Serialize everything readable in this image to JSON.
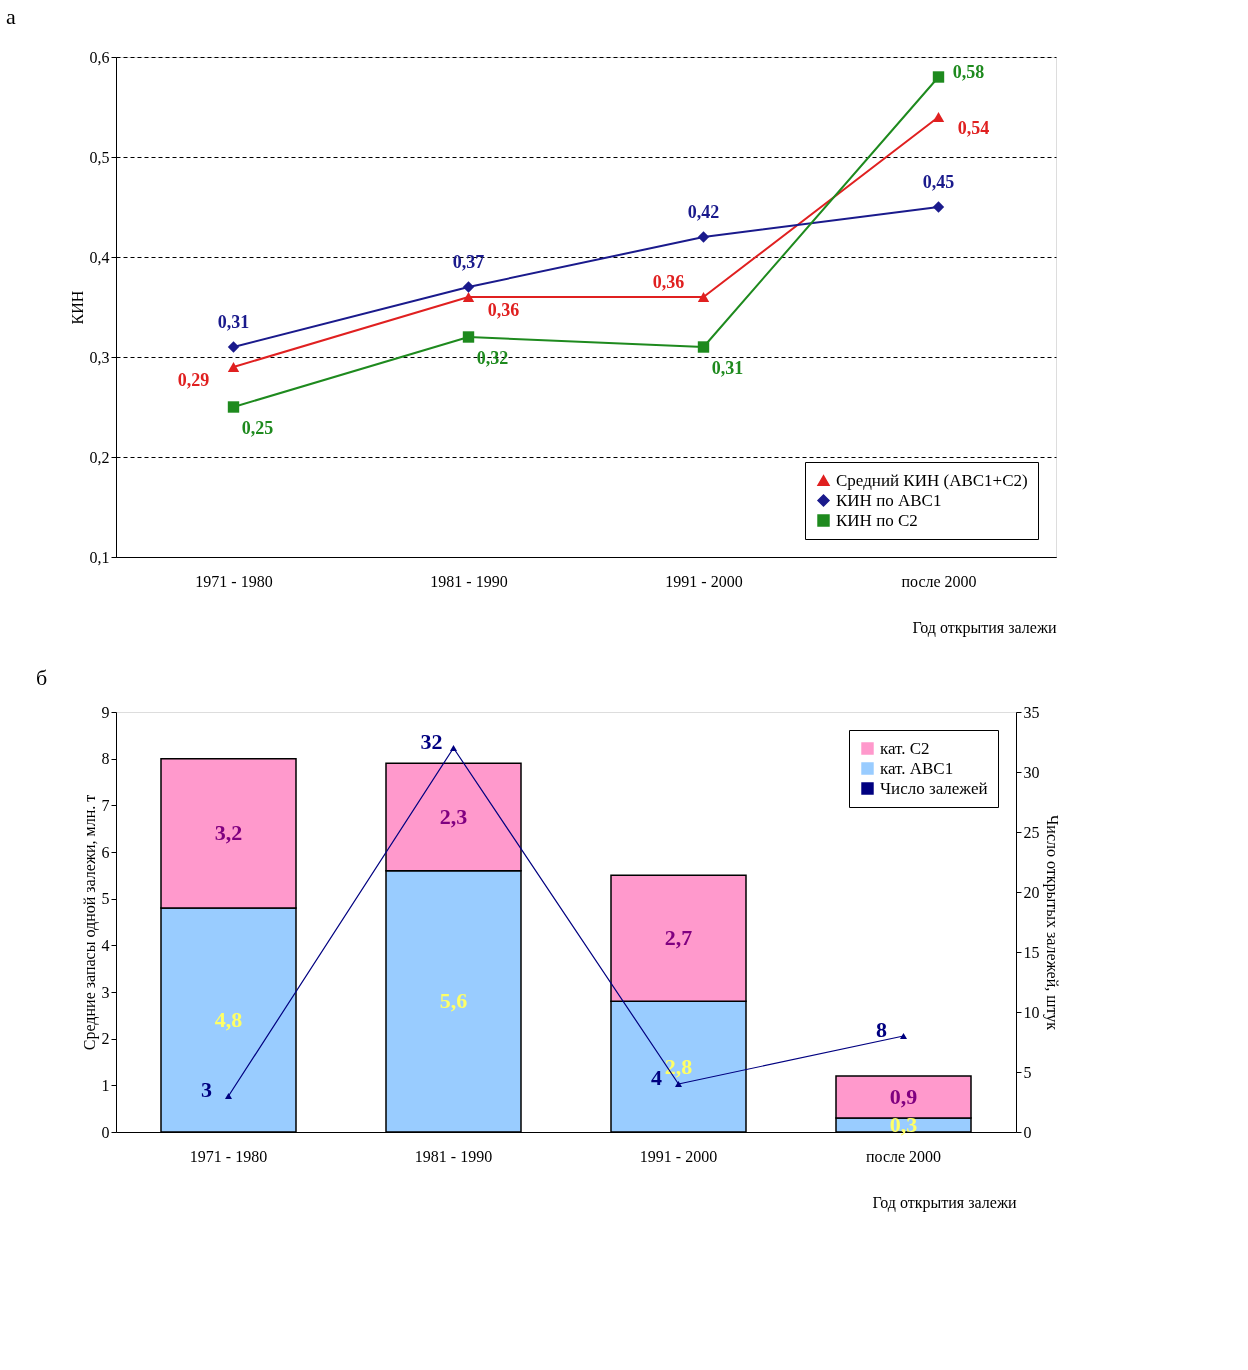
{
  "chart_data": [
    {
      "type": "line",
      "title": "а",
      "xlabel": "Год открытия залежи",
      "ylabel": "КИН",
      "categories": [
        "1971 - 1980",
        "1981 - 1990",
        "1991 - 2000",
        "после 2000"
      ],
      "series": [
        {
          "name": "Средний КИН (АВС1+С2)",
          "color": "#e02020",
          "marker": "triangle",
          "values": [
            0.29,
            0.36,
            0.36,
            0.54
          ],
          "value_labels": [
            "0,29",
            "0,36",
            "0,36",
            "0,54"
          ]
        },
        {
          "name": "КИН по АВС1",
          "color": "#1a1a8c",
          "marker": "diamond",
          "values": [
            0.31,
            0.37,
            0.42,
            0.45
          ],
          "value_labels": [
            "0,31",
            "0,37",
            "0,42",
            "0,45"
          ]
        },
        {
          "name": "КИН по С2",
          "color": "#1e8a1e",
          "marker": "square",
          "values": [
            0.25,
            0.32,
            0.31,
            0.58
          ],
          "value_labels": [
            "0,25",
            "0,32",
            "0,31",
            "0,58"
          ]
        }
      ],
      "ylim": [
        0.1,
        0.6
      ],
      "yticks": [
        {
          "value": 0.1,
          "label": "0,1"
        },
        {
          "value": 0.2,
          "label": "0,2"
        },
        {
          "value": 0.3,
          "label": "0,3"
        },
        {
          "value": 0.4,
          "label": "0,4"
        },
        {
          "value": 0.5,
          "label": "0,5"
        },
        {
          "value": 0.6,
          "label": "0,6"
        }
      ],
      "grid": "y",
      "legend": "bottom right"
    },
    {
      "type": "bar",
      "title": "б",
      "xlabel": "Год открытия залежи",
      "ylabel": "Средние запасы одной залежи, млн. т",
      "y2label": "Число открытых залежей, штук",
      "categories": [
        "1971 - 1980",
        "1981 - 1990",
        "1991 - 2000",
        "после 2000"
      ],
      "stacked": true,
      "series": [
        {
          "name": "кат. АВС1",
          "color": "#99ccff",
          "values": [
            4.8,
            5.6,
            2.8,
            0.3
          ],
          "value_labels": [
            "4,8",
            "5,6",
            "2,8",
            "0,3"
          ]
        },
        {
          "name": "кат. С2",
          "color": "#ff99cc",
          "values": [
            3.2,
            2.3,
            2.7,
            0.9
          ],
          "value_labels": [
            "3,2",
            "2,3",
            "2,7",
            "0,9"
          ]
        },
        {
          "name": "Число залежей",
          "type": "line",
          "axis": "y2",
          "marker": "triangle",
          "color": "#000080",
          "values": [
            3,
            32,
            4,
            8
          ],
          "value_labels": [
            "3",
            "32",
            "4",
            "8"
          ]
        }
      ],
      "ylim": [
        0,
        9
      ],
      "yticks": [
        0,
        1,
        2,
        3,
        4,
        5,
        6,
        7,
        8,
        9
      ],
      "y2lim": [
        0,
        35
      ],
      "y2ticks": [
        0,
        5,
        10,
        15,
        20,
        25,
        30,
        35
      ],
      "grid": false,
      "legend": "top right"
    }
  ]
}
